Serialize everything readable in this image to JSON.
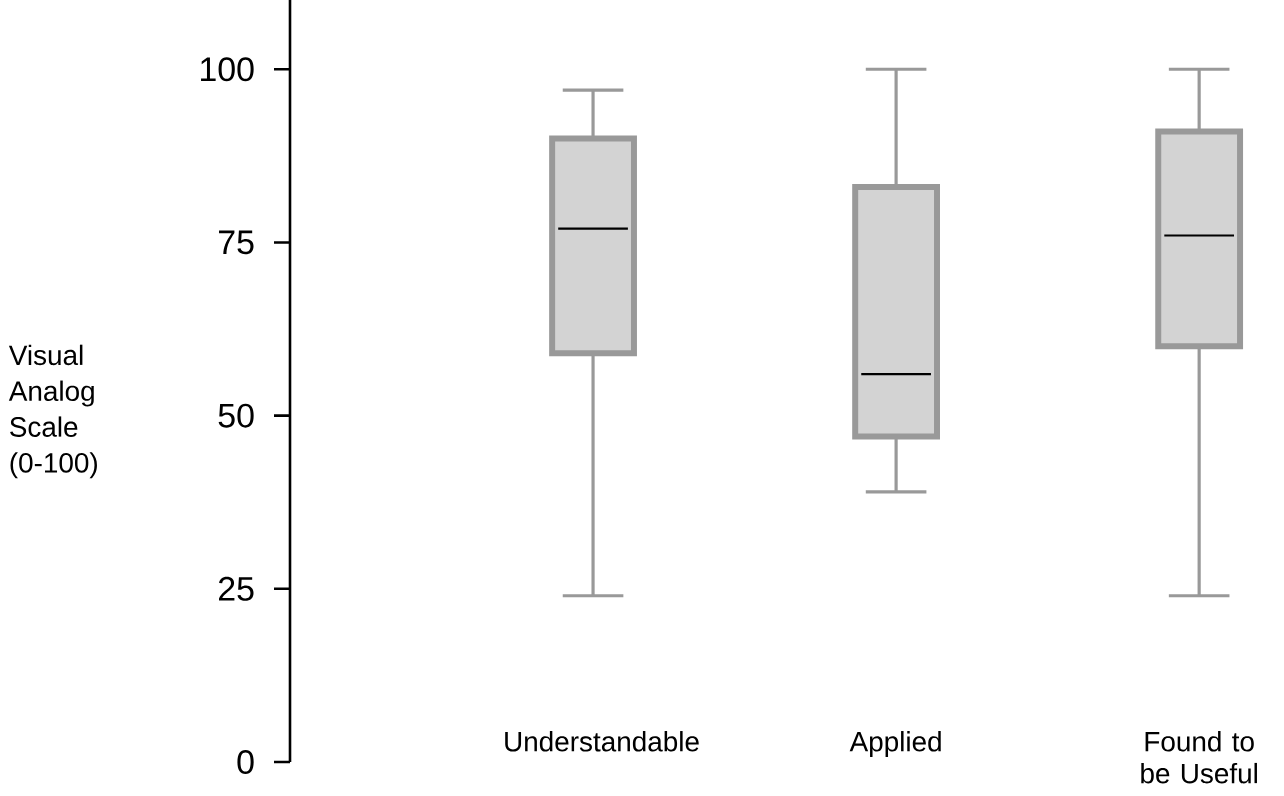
{
  "chart_data": {
    "type": "box",
    "ylabel": "Visual Analog Scale (0-100)",
    "categories": [
      "Understandable",
      "Applied",
      "Found to be Useful"
    ],
    "boxes": [
      {
        "low": 24,
        "q1": 59,
        "median": 77,
        "q3": 90,
        "high": 97
      },
      {
        "low": 39,
        "q1": 47,
        "median": 56,
        "q3": 83,
        "high": 100
      },
      {
        "low": 24,
        "q1": 60,
        "median": 76,
        "q3": 91,
        "high": 100
      }
    ],
    "color": "#d3d3d3",
    "ylim": [
      0,
      110
    ],
    "yticks": [
      0,
      25,
      50,
      75,
      100
    ],
    "grid": false
  }
}
